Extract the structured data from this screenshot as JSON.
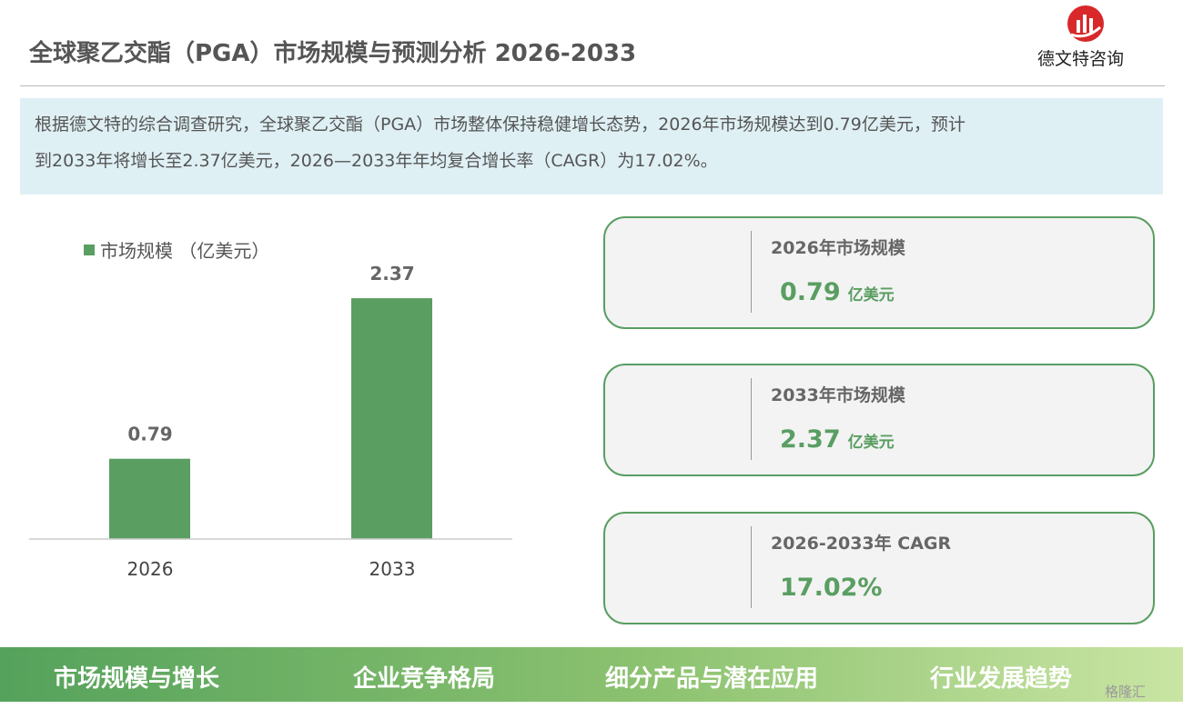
{
  "header": {
    "title": "全球聚乙交酯（PGA）市场规模与预测分析 2026-2033",
    "logo": "德文特咨询"
  },
  "summary": [
    "根据德文特的综合调查研究，全球聚乙交酯（PGA）市场整体保持稳健增长态势，2026年市场规模达到0.79亿美元，预计",
    "到2033年将增长至2.37亿美元，2026—2033年年均复合增长率（CAGR）为17.02%。"
  ],
  "chart_data": {
    "type": "bar",
    "categories": [
      "2026",
      "2033"
    ],
    "series": [
      {
        "name": "市场规模 （亿美元）",
        "color": "#5a9e62",
        "values": [
          0.79,
          2.37
        ]
      }
    ],
    "ylim": [
      0,
      2.8
    ],
    "legend": "top-left"
  },
  "cards": [
    {
      "title": "2026年市场规模",
      "value": "0.79",
      "unit": "亿美元"
    },
    {
      "title": "2033年市场规模",
      "value": "2.37",
      "unit": "亿美元"
    },
    {
      "title": "2026-2033年 CAGR",
      "value": "17.02%"
    }
  ],
  "footer": [
    "市场规模与增长",
    "企业竞争格局",
    "细分产品与潜在应用",
    "行业发展趋势"
  ],
  "watermark": "格隆汇"
}
